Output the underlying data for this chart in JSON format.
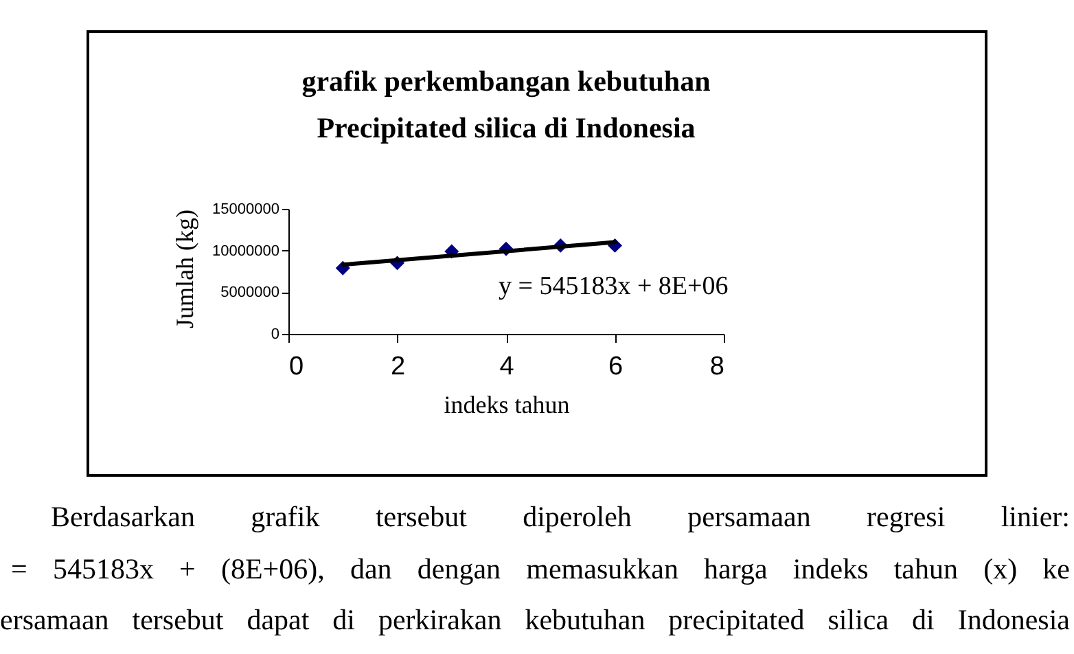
{
  "chart_data": {
    "type": "scatter",
    "title": "grafik perkembangan kebutuhan Precipitated silica di Indonesia",
    "xlabel": "indeks tahun",
    "ylabel": "Jumlah (kg)",
    "x": [
      1,
      2,
      3,
      4,
      5,
      6
    ],
    "series": [
      {
        "color": "#000080",
        "marker": "diamond",
        "values": [
          7900000,
          8500000,
          9900000,
          10200000,
          10600000,
          10600000
        ]
      },
      {
        "type": "line",
        "color": "#000000",
        "x": [
          1,
          6
        ],
        "values": [
          8300000,
          11000000
        ]
      }
    ],
    "xlim": [
      0,
      8
    ],
    "xticks": [
      0,
      2,
      4,
      6,
      8
    ],
    "ylim": [
      0,
      15000000
    ],
    "yticks": [
      0,
      5000000,
      10000000,
      15000000
    ],
    "annotations": [
      "y = 545183x + 8E+06",
      "Berdasarkan grafik tersebut diperoleh persamaan regresi linier:",
      "= 545183x + (8E+06), dan dengan memasukkan harga indeks tahun (x) ke",
      "ersamaan tersebut dapat di perkirakan kebutuhan precipitated silica di Indonesia"
    ]
  }
}
